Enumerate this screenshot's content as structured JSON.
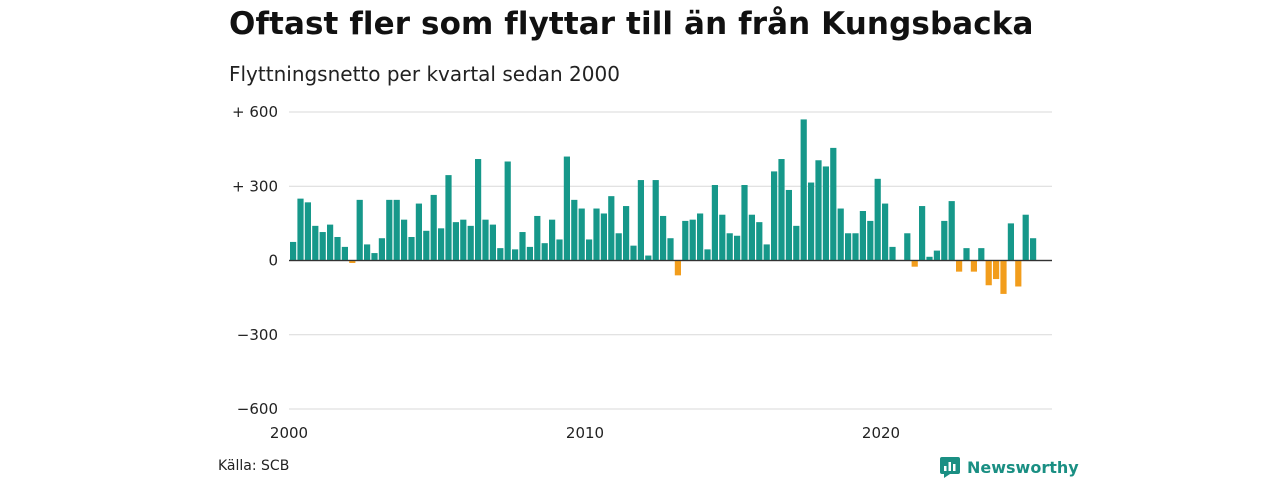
{
  "header": {
    "title": "Oftast fler som flyttar till än från Kungsbacka",
    "subtitle": "Flyttningsnetto per kvartal sedan 2000"
  },
  "footer": {
    "source": "Källa: SCB",
    "brand": "Newsworthy",
    "brand_icon": "bar-chart-logo-icon"
  },
  "colors": {
    "positive": "#16988a",
    "negative": "#f29d1c",
    "grid": "#d9d9d9",
    "brand": "#1a8f83"
  },
  "chart_data": {
    "type": "bar",
    "title": "Oftast fler som flyttar till än från Kungsbacka",
    "subtitle": "Flyttningsnetto per kvartal sedan 2000",
    "x_start": 2000,
    "periods_per_year": 4,
    "x_tick_labels": [
      "2000",
      "2010",
      "2020"
    ],
    "y_ticks": [
      {
        "value": 600,
        "label": "+ 600"
      },
      {
        "value": 300,
        "label": "+ 300"
      },
      {
        "value": 0,
        "label": "0"
      },
      {
        "value": -300,
        "label": "−300"
      },
      {
        "value": -600,
        "label": "−600"
      }
    ],
    "ylim": [
      -600,
      600
    ],
    "grid": true,
    "values": [
      75,
      250,
      235,
      140,
      115,
      145,
      95,
      55,
      -10,
      245,
      65,
      30,
      90,
      245,
      245,
      165,
      95,
      230,
      120,
      265,
      130,
      345,
      155,
      165,
      140,
      410,
      165,
      145,
      50,
      400,
      45,
      115,
      55,
      180,
      70,
      165,
      85,
      420,
      245,
      210,
      85,
      210,
      190,
      260,
      110,
      220,
      60,
      325,
      20,
      325,
      180,
      90,
      -60,
      160,
      165,
      190,
      45,
      305,
      185,
      110,
      100,
      305,
      185,
      155,
      65,
      360,
      410,
      285,
      140,
      570,
      315,
      405,
      380,
      455,
      210,
      110,
      110,
      200,
      160,
      330,
      230,
      55,
      0,
      110,
      -25,
      220,
      15,
      40,
      160,
      240,
      -45,
      50,
      -45,
      50,
      -100,
      -75,
      -135,
      150,
      -105,
      185,
      90
    ]
  }
}
